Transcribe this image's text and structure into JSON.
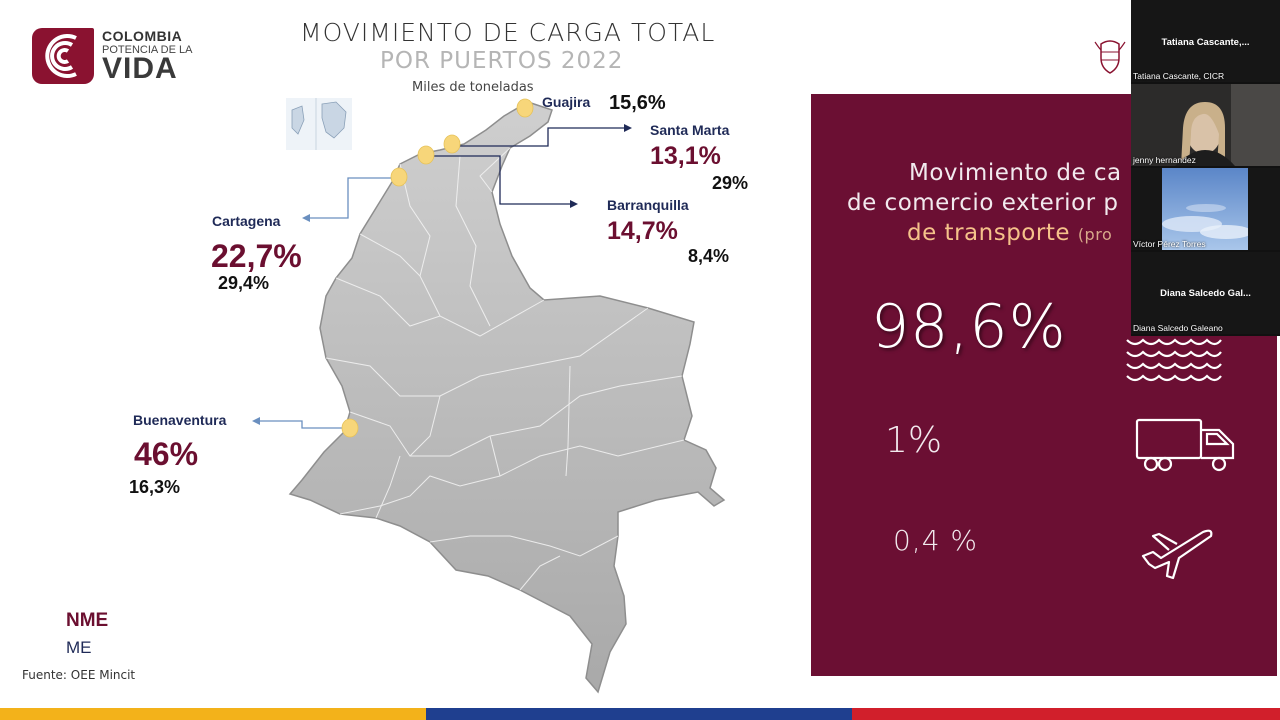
{
  "slide": {
    "brand": {
      "line1": "COLOMBIA",
      "line2": "POTENCIA DE LA",
      "line3": "VIDA"
    },
    "title_line1": "MOVIMIENTO DE CARGA TOTAL",
    "title_line2": "POR PUERTOS 2022",
    "subtitle": "Miles de toneladas",
    "ports": [
      {
        "name": "Guajira",
        "nme": "15,6%",
        "me": ""
      },
      {
        "name": "Santa Marta",
        "nme": "13,1%",
        "me": "29%"
      },
      {
        "name": "Barranquilla",
        "nme": "14,7%",
        "me": "8,4%"
      },
      {
        "name": "Cartagena",
        "nme": "22,7%",
        "me": "29,4%"
      },
      {
        "name": "Buenaventura",
        "nme": "46%",
        "me": "16,3%"
      }
    ],
    "legend": {
      "nme": "NME",
      "me": "ME"
    },
    "source": "Fuente: OEE Mincit",
    "panel": {
      "line1": "Movimiento de ca",
      "line2": "de comercio exterior p",
      "line3": "de transporte",
      "line3_suffix": "(pro",
      "values": [
        {
          "value": "98,6%",
          "icon": "waves-ship-icon"
        },
        {
          "value": "1%",
          "icon": "truck-icon"
        },
        {
          "value": "0,4 %",
          "icon": "airplane-icon"
        }
      ]
    },
    "colors": {
      "accent": "#6b0f33",
      "navy": "#1f2a57",
      "gold": "#f5c28a",
      "map_fill": "#bdbdbd"
    },
    "flag_bar": [
      "#f3b21a",
      "#1f3f8f",
      "#d11f2b"
    ]
  },
  "participants": [
    {
      "name_center": "Tatiana Cascante,...",
      "name_small": "Tatiana Cascante, CICR"
    },
    {
      "name_center": "",
      "name_small": "jenny hernandez"
    },
    {
      "name_center": "",
      "name_small": "Víctor Pérez Torres"
    },
    {
      "name_center": "Diana Salcedo Gal...",
      "name_small": "Diana Salcedo Galeano"
    }
  ]
}
